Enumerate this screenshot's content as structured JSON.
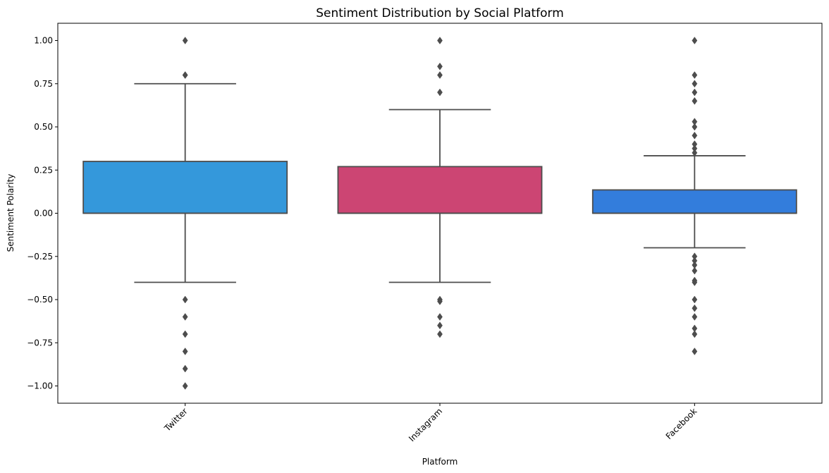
{
  "chart_data": {
    "type": "box",
    "title": "Sentiment Distribution by Social Platform",
    "xlabel": "Platform",
    "ylabel": "Sentiment Polarity",
    "ylim": [
      -1.1,
      1.1
    ],
    "yticks": [
      1.0,
      0.75,
      0.5,
      0.25,
      0.0,
      -0.25,
      -0.5,
      -0.75,
      -1.0
    ],
    "ytick_labels": [
      "1.00",
      "0.75",
      "0.50",
      "0.25",
      "0.00",
      "−0.25",
      "−0.50",
      "−0.75",
      "−1.00"
    ],
    "categories": [
      "Twitter",
      "Instagram",
      "Facebook"
    ],
    "grid": false,
    "legend": "none",
    "boxes": [
      {
        "category": "Twitter",
        "color": "#3498db",
        "q1": 0.0,
        "median": 0.0,
        "q3": 0.3,
        "whisker_low": -0.4,
        "whisker_high": 0.75,
        "outliers": [
          1.0,
          0.8,
          0.8,
          -0.5,
          -0.6,
          -0.7,
          -0.8,
          -0.9,
          -1.0
        ]
      },
      {
        "category": "Instagram",
        "color": "#cc4573",
        "q1": 0.0,
        "median": 0.0,
        "q3": 0.27,
        "whisker_low": -0.4,
        "whisker_high": 0.6,
        "outliers": [
          1.0,
          0.85,
          0.8,
          0.7,
          -0.5,
          -0.51,
          -0.6,
          -0.65,
          -0.7
        ]
      },
      {
        "category": "Facebook",
        "color": "#337ddc",
        "q1": 0.0,
        "median": 0.0,
        "q3": 0.135,
        "whisker_low": -0.2,
        "whisker_high": 0.333,
        "outliers": [
          1.0,
          0.8,
          0.75,
          0.7,
          0.65,
          0.53,
          0.5,
          0.45,
          0.4,
          0.375,
          0.35,
          -0.25,
          -0.275,
          -0.3,
          -0.333,
          -0.39,
          -0.4,
          -0.5,
          -0.55,
          -0.6,
          -0.667,
          -0.7,
          -0.8
        ]
      }
    ]
  }
}
